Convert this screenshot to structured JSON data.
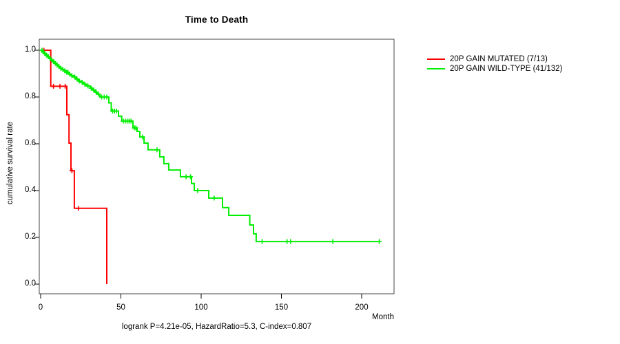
{
  "chart_data": {
    "type": "line",
    "subtype": "kaplan-meier-step-curve",
    "title": "Time to Death",
    "xlabel": "Month",
    "ylabel": "cumulative survival rate",
    "caption": "logrank P=4.21e-05, HazardRatio=5.3, C-index=0.807",
    "grid": false,
    "legend_position": "right-of-plot",
    "axis_color": "#000000",
    "box_color": "#454545",
    "xlim": [
      0,
      220
    ],
    "ylim": [
      0.0,
      1.0
    ],
    "x_ticks": [
      {
        "value": 0,
        "label": "0"
      },
      {
        "value": 50,
        "label": "50"
      },
      {
        "value": 100,
        "label": "100"
      },
      {
        "value": 150,
        "label": "150"
      },
      {
        "value": 200,
        "label": "200"
      }
    ],
    "y_ticks": [
      {
        "value": 1.0,
        "label": "1.0"
      },
      {
        "value": 0.8,
        "label": "0.8"
      },
      {
        "value": 0.6,
        "label": "0.6"
      },
      {
        "value": 0.4,
        "label": "0.4"
      },
      {
        "value": 0.2,
        "label": "0.2"
      },
      {
        "value": 0.0,
        "label": "0.0"
      }
    ],
    "series": [
      {
        "id": "mutated",
        "name": "20P GAIN MUTATED (7/13)",
        "color": "#FF0000",
        "steps": [
          [
            0,
            1.0
          ],
          [
            6.3,
            0.846
          ],
          [
            16.3,
            0.724
          ],
          [
            17.7,
            0.603
          ],
          [
            18.9,
            0.485
          ],
          [
            21.0,
            0.324
          ],
          [
            41.2,
            0.0
          ]
        ],
        "censor_marks": [
          [
            2.0,
            1.0
          ],
          [
            8.0,
            0.846
          ],
          [
            12.0,
            0.846
          ],
          [
            15.3,
            0.846
          ],
          [
            19.5,
            0.485
          ],
          [
            23.6,
            0.324
          ]
        ]
      },
      {
        "id": "wildtype",
        "name": "20P GAIN WILD-TYPE (41/132)",
        "color": "#00EE00",
        "steps": [
          [
            0,
            1.0
          ],
          [
            1.0,
            0.993
          ],
          [
            2.1,
            0.986
          ],
          [
            3.2,
            0.979
          ],
          [
            4.3,
            0.972
          ],
          [
            5.4,
            0.965
          ],
          [
            6.5,
            0.958
          ],
          [
            7.6,
            0.951
          ],
          [
            8.7,
            0.944
          ],
          [
            9.8,
            0.937
          ],
          [
            10.9,
            0.93
          ],
          [
            12.0,
            0.923
          ],
          [
            13.2,
            0.918
          ],
          [
            14.4,
            0.912
          ],
          [
            15.6,
            0.906
          ],
          [
            17.4,
            0.898
          ],
          [
            18.8,
            0.891
          ],
          [
            20.6,
            0.886
          ],
          [
            21.9,
            0.877
          ],
          [
            23.5,
            0.868
          ],
          [
            25.3,
            0.863
          ],
          [
            26.6,
            0.855
          ],
          [
            28.5,
            0.847
          ],
          [
            30.9,
            0.838
          ],
          [
            32.2,
            0.83
          ],
          [
            34.0,
            0.821
          ],
          [
            35.2,
            0.812
          ],
          [
            36.9,
            0.8
          ],
          [
            42.5,
            0.775
          ],
          [
            44.0,
            0.74
          ],
          [
            48.5,
            0.718
          ],
          [
            50.5,
            0.697
          ],
          [
            57.5,
            0.668
          ],
          [
            60.1,
            0.653
          ],
          [
            61.8,
            0.629
          ],
          [
            64.4,
            0.603
          ],
          [
            66.9,
            0.574
          ],
          [
            74.2,
            0.544
          ],
          [
            76.8,
            0.515
          ],
          [
            79.8,
            0.488
          ],
          [
            87.1,
            0.459
          ],
          [
            94.0,
            0.43
          ],
          [
            95.7,
            0.4
          ],
          [
            104.7,
            0.368
          ],
          [
            113.3,
            0.327
          ],
          [
            117.2,
            0.294
          ],
          [
            130.3,
            0.253
          ],
          [
            132.6,
            0.215
          ],
          [
            134.3,
            0.182
          ],
          [
            211.0,
            0.182
          ]
        ],
        "censor_marks": [
          [
            0.8,
            1.0
          ],
          [
            1.5,
            0.993
          ],
          [
            2.6,
            0.986
          ],
          [
            3.7,
            0.979
          ],
          [
            4.8,
            0.972
          ],
          [
            5.9,
            0.965
          ],
          [
            7.0,
            0.958
          ],
          [
            8.1,
            0.951
          ],
          [
            9.2,
            0.944
          ],
          [
            10.3,
            0.937
          ],
          [
            11.4,
            0.93
          ],
          [
            12.6,
            0.923
          ],
          [
            13.8,
            0.918
          ],
          [
            15.0,
            0.912
          ],
          [
            16.2,
            0.906
          ],
          [
            17.0,
            0.906
          ],
          [
            18.1,
            0.898
          ],
          [
            19.5,
            0.891
          ],
          [
            21.2,
            0.886
          ],
          [
            22.6,
            0.877
          ],
          [
            24.2,
            0.868
          ],
          [
            25.9,
            0.863
          ],
          [
            27.5,
            0.855
          ],
          [
            29.5,
            0.847
          ],
          [
            31.5,
            0.838
          ],
          [
            33.0,
            0.83
          ],
          [
            34.6,
            0.821
          ],
          [
            36.0,
            0.812
          ],
          [
            38.0,
            0.8
          ],
          [
            39.6,
            0.8
          ],
          [
            41.2,
            0.8
          ],
          [
            44.8,
            0.74
          ],
          [
            46.0,
            0.74
          ],
          [
            47.2,
            0.74
          ],
          [
            51.5,
            0.697
          ],
          [
            52.7,
            0.697
          ],
          [
            53.9,
            0.697
          ],
          [
            55.1,
            0.697
          ],
          [
            56.3,
            0.697
          ],
          [
            58.4,
            0.668
          ],
          [
            59.3,
            0.668
          ],
          [
            63.5,
            0.629
          ],
          [
            72.5,
            0.574
          ],
          [
            90.6,
            0.459
          ],
          [
            93.4,
            0.459
          ],
          [
            97.8,
            0.4
          ],
          [
            108.1,
            0.368
          ],
          [
            138.0,
            0.182
          ],
          [
            153.5,
            0.182
          ],
          [
            155.7,
            0.182
          ],
          [
            182.0,
            0.182
          ],
          [
            211.0,
            0.182
          ]
        ]
      }
    ]
  }
}
